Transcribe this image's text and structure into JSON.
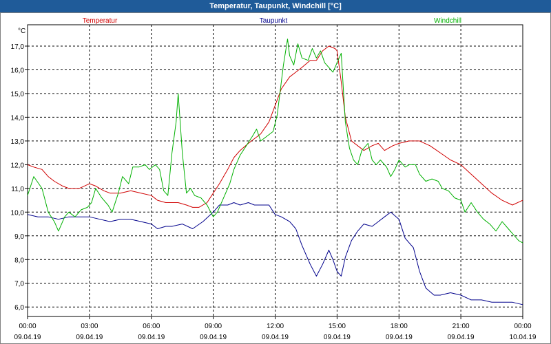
{
  "window": {
    "title": "Temperatur, Taupunkt, Windchill [°C]"
  },
  "chart_data": {
    "type": "line",
    "title": "Temperatur, Taupunkt, Windchill [°C]",
    "ylabel": "°C",
    "xlabel": "",
    "ylim": [
      5.6,
      17.9
    ],
    "xlim": [
      0,
      24
    ],
    "grid": true,
    "y_ticks": [
      6.0,
      7.0,
      8.0,
      9.0,
      10.0,
      11.0,
      12.0,
      13.0,
      14.0,
      15.0,
      16.0,
      17.0
    ],
    "y_tick_labels": [
      "6,0",
      "7,0",
      "8,0",
      "9,0",
      "10,0",
      "11,0",
      "12,0",
      "13,0",
      "14,0",
      "15,0",
      "16,0",
      "17,0"
    ],
    "x_ticks": [
      {
        "h": 0,
        "time": "00:00",
        "date": "09.04.19"
      },
      {
        "h": 3,
        "time": "03:00",
        "date": "09.04.19"
      },
      {
        "h": 6,
        "time": "06:00",
        "date": "09.04.19"
      },
      {
        "h": 9,
        "time": "09:00",
        "date": "09.04.19"
      },
      {
        "h": 12,
        "time": "12:00",
        "date": "09.04.19"
      },
      {
        "h": 15,
        "time": "15:00",
        "date": "09.04.19"
      },
      {
        "h": 18,
        "time": "18:00",
        "date": "09.04.19"
      },
      {
        "h": 21,
        "time": "21:00",
        "date": "09.04.19"
      },
      {
        "h": 24,
        "time": "00:00",
        "date": "10.04.19"
      }
    ],
    "series": [
      {
        "name": "Temperatur",
        "color": "#d00000",
        "points": [
          [
            0,
            12.0
          ],
          [
            0.3,
            11.9
          ],
          [
            0.7,
            11.8
          ],
          [
            1.0,
            11.5
          ],
          [
            1.3,
            11.3
          ],
          [
            1.7,
            11.1
          ],
          [
            2.0,
            11.0
          ],
          [
            2.5,
            11.0
          ],
          [
            3.0,
            11.2
          ],
          [
            3.3,
            11.1
          ],
          [
            3.7,
            10.9
          ],
          [
            4.0,
            10.8
          ],
          [
            4.5,
            10.8
          ],
          [
            5.0,
            10.9
          ],
          [
            5.5,
            10.8
          ],
          [
            6.0,
            10.7
          ],
          [
            6.3,
            10.5
          ],
          [
            6.7,
            10.4
          ],
          [
            7.0,
            10.4
          ],
          [
            7.3,
            10.4
          ],
          [
            7.7,
            10.3
          ],
          [
            8.0,
            10.2
          ],
          [
            8.3,
            10.2
          ],
          [
            8.7,
            10.4
          ],
          [
            9.0,
            10.8
          ],
          [
            9.3,
            11.2
          ],
          [
            9.7,
            11.8
          ],
          [
            10.0,
            12.3
          ],
          [
            10.3,
            12.6
          ],
          [
            10.7,
            12.9
          ],
          [
            11.0,
            13.1
          ],
          [
            11.3,
            13.3
          ],
          [
            11.7,
            13.8
          ],
          [
            12.0,
            14.5
          ],
          [
            12.3,
            15.2
          ],
          [
            12.7,
            15.7
          ],
          [
            13.0,
            15.9
          ],
          [
            13.3,
            16.1
          ],
          [
            13.7,
            16.4
          ],
          [
            14.0,
            16.4
          ],
          [
            14.3,
            16.8
          ],
          [
            14.6,
            17.0
          ],
          [
            14.9,
            16.9
          ],
          [
            15.0,
            16.8
          ],
          [
            15.2,
            15.5
          ],
          [
            15.4,
            14.0
          ],
          [
            15.7,
            13.0
          ],
          [
            16.0,
            12.8
          ],
          [
            16.3,
            12.6
          ],
          [
            16.7,
            12.8
          ],
          [
            17.0,
            12.9
          ],
          [
            17.3,
            12.6
          ],
          [
            17.7,
            12.8
          ],
          [
            18.0,
            12.9
          ],
          [
            18.5,
            13.0
          ],
          [
            19.0,
            13.0
          ],
          [
            19.5,
            12.8
          ],
          [
            20.0,
            12.5
          ],
          [
            20.5,
            12.2
          ],
          [
            21.0,
            12.0
          ],
          [
            21.5,
            11.6
          ],
          [
            22.0,
            11.2
          ],
          [
            22.5,
            10.8
          ],
          [
            23.0,
            10.5
          ],
          [
            23.5,
            10.3
          ],
          [
            24.0,
            10.5
          ]
        ]
      },
      {
        "name": "Taupunkt",
        "color": "#00008b",
        "points": [
          [
            0,
            9.9
          ],
          [
            0.5,
            9.8
          ],
          [
            1.0,
            9.8
          ],
          [
            1.5,
            9.7
          ],
          [
            2.0,
            9.8
          ],
          [
            2.5,
            9.8
          ],
          [
            3.0,
            9.8
          ],
          [
            3.5,
            9.7
          ],
          [
            4.0,
            9.6
          ],
          [
            4.5,
            9.7
          ],
          [
            5.0,
            9.7
          ],
          [
            5.5,
            9.6
          ],
          [
            6.0,
            9.5
          ],
          [
            6.3,
            9.3
          ],
          [
            6.7,
            9.4
          ],
          [
            7.0,
            9.4
          ],
          [
            7.5,
            9.5
          ],
          [
            8.0,
            9.3
          ],
          [
            8.5,
            9.6
          ],
          [
            9.0,
            10.0
          ],
          [
            9.3,
            10.3
          ],
          [
            9.7,
            10.3
          ],
          [
            10.0,
            10.4
          ],
          [
            10.3,
            10.3
          ],
          [
            10.7,
            10.4
          ],
          [
            11.0,
            10.3
          ],
          [
            11.3,
            10.3
          ],
          [
            11.7,
            10.3
          ],
          [
            12.0,
            9.9
          ],
          [
            12.3,
            9.8
          ],
          [
            12.7,
            9.6
          ],
          [
            13.0,
            9.3
          ],
          [
            13.3,
            8.6
          ],
          [
            13.7,
            7.8
          ],
          [
            14.0,
            7.3
          ],
          [
            14.3,
            7.8
          ],
          [
            14.6,
            8.4
          ],
          [
            14.8,
            8.0
          ],
          [
            15.0,
            7.5
          ],
          [
            15.2,
            7.3
          ],
          [
            15.4,
            8.1
          ],
          [
            15.7,
            8.8
          ],
          [
            16.0,
            9.2
          ],
          [
            16.3,
            9.5
          ],
          [
            16.7,
            9.4
          ],
          [
            17.0,
            9.6
          ],
          [
            17.3,
            9.8
          ],
          [
            17.6,
            10.0
          ],
          [
            18.0,
            9.7
          ],
          [
            18.3,
            8.9
          ],
          [
            18.7,
            8.5
          ],
          [
            19.0,
            7.5
          ],
          [
            19.3,
            6.8
          ],
          [
            19.7,
            6.5
          ],
          [
            20.0,
            6.5
          ],
          [
            20.5,
            6.6
          ],
          [
            21.0,
            6.5
          ],
          [
            21.5,
            6.3
          ],
          [
            22.0,
            6.3
          ],
          [
            22.5,
            6.2
          ],
          [
            23.0,
            6.2
          ],
          [
            23.5,
            6.2
          ],
          [
            24.0,
            6.1
          ]
        ]
      },
      {
        "name": "Windchill",
        "color": "#00b000",
        "points": [
          [
            0,
            10.7
          ],
          [
            0.3,
            11.5
          ],
          [
            0.7,
            11.0
          ],
          [
            1.0,
            10.0
          ],
          [
            1.3,
            9.6
          ],
          [
            1.5,
            9.2
          ],
          [
            1.8,
            9.8
          ],
          [
            2.0,
            10.0
          ],
          [
            2.3,
            9.8
          ],
          [
            2.6,
            10.1
          ],
          [
            2.9,
            10.2
          ],
          [
            3.1,
            10.4
          ],
          [
            3.3,
            11.0
          ],
          [
            3.6,
            10.6
          ],
          [
            3.9,
            10.3
          ],
          [
            4.1,
            10.0
          ],
          [
            4.4,
            10.8
          ],
          [
            4.6,
            11.5
          ],
          [
            4.9,
            11.2
          ],
          [
            5.1,
            11.9
          ],
          [
            5.4,
            11.9
          ],
          [
            5.7,
            12.0
          ],
          [
            5.9,
            11.8
          ],
          [
            6.2,
            12.0
          ],
          [
            6.4,
            11.8
          ],
          [
            6.6,
            10.9
          ],
          [
            6.8,
            10.7
          ],
          [
            7.0,
            12.5
          ],
          [
            7.2,
            13.8
          ],
          [
            7.3,
            15.0
          ],
          [
            7.5,
            12.5
          ],
          [
            7.7,
            10.8
          ],
          [
            7.9,
            11.0
          ],
          [
            8.1,
            10.7
          ],
          [
            8.4,
            10.6
          ],
          [
            8.7,
            10.3
          ],
          [
            9.0,
            9.8
          ],
          [
            9.2,
            10.0
          ],
          [
            9.5,
            10.6
          ],
          [
            9.8,
            11.2
          ],
          [
            10.0,
            11.8
          ],
          [
            10.3,
            12.4
          ],
          [
            10.6,
            12.8
          ],
          [
            10.9,
            13.2
          ],
          [
            11.1,
            13.5
          ],
          [
            11.3,
            13.0
          ],
          [
            11.6,
            13.2
          ],
          [
            11.9,
            13.4
          ],
          [
            12.1,
            14.1
          ],
          [
            12.3,
            15.5
          ],
          [
            12.4,
            16.2
          ],
          [
            12.6,
            17.3
          ],
          [
            12.7,
            16.6
          ],
          [
            12.9,
            16.2
          ],
          [
            13.1,
            17.1
          ],
          [
            13.3,
            16.5
          ],
          [
            13.6,
            16.4
          ],
          [
            13.8,
            16.9
          ],
          [
            14.0,
            16.5
          ],
          [
            14.2,
            16.8
          ],
          [
            14.4,
            16.3
          ],
          [
            14.6,
            16.1
          ],
          [
            14.8,
            15.9
          ],
          [
            15.0,
            16.3
          ],
          [
            15.2,
            16.7
          ],
          [
            15.4,
            13.8
          ],
          [
            15.6,
            12.7
          ],
          [
            15.8,
            12.2
          ],
          [
            16.0,
            12.0
          ],
          [
            16.2,
            12.6
          ],
          [
            16.5,
            12.9
          ],
          [
            16.7,
            12.2
          ],
          [
            16.9,
            12.0
          ],
          [
            17.1,
            12.2
          ],
          [
            17.4,
            11.9
          ],
          [
            17.6,
            11.5
          ],
          [
            17.8,
            11.8
          ],
          [
            18.0,
            12.2
          ],
          [
            18.3,
            11.9
          ],
          [
            18.5,
            12.0
          ],
          [
            18.8,
            12.0
          ],
          [
            19.0,
            11.6
          ],
          [
            19.3,
            11.3
          ],
          [
            19.6,
            11.4
          ],
          [
            19.9,
            11.3
          ],
          [
            20.1,
            11.0
          ],
          [
            20.4,
            10.9
          ],
          [
            20.7,
            10.6
          ],
          [
            21.0,
            10.5
          ],
          [
            21.2,
            10.0
          ],
          [
            21.5,
            10.4
          ],
          [
            21.8,
            10.0
          ],
          [
            22.1,
            9.7
          ],
          [
            22.4,
            9.5
          ],
          [
            22.7,
            9.2
          ],
          [
            23.0,
            9.6
          ],
          [
            23.3,
            9.3
          ],
          [
            23.6,
            9.0
          ],
          [
            23.8,
            8.8
          ],
          [
            24.0,
            8.7
          ]
        ]
      }
    ]
  }
}
